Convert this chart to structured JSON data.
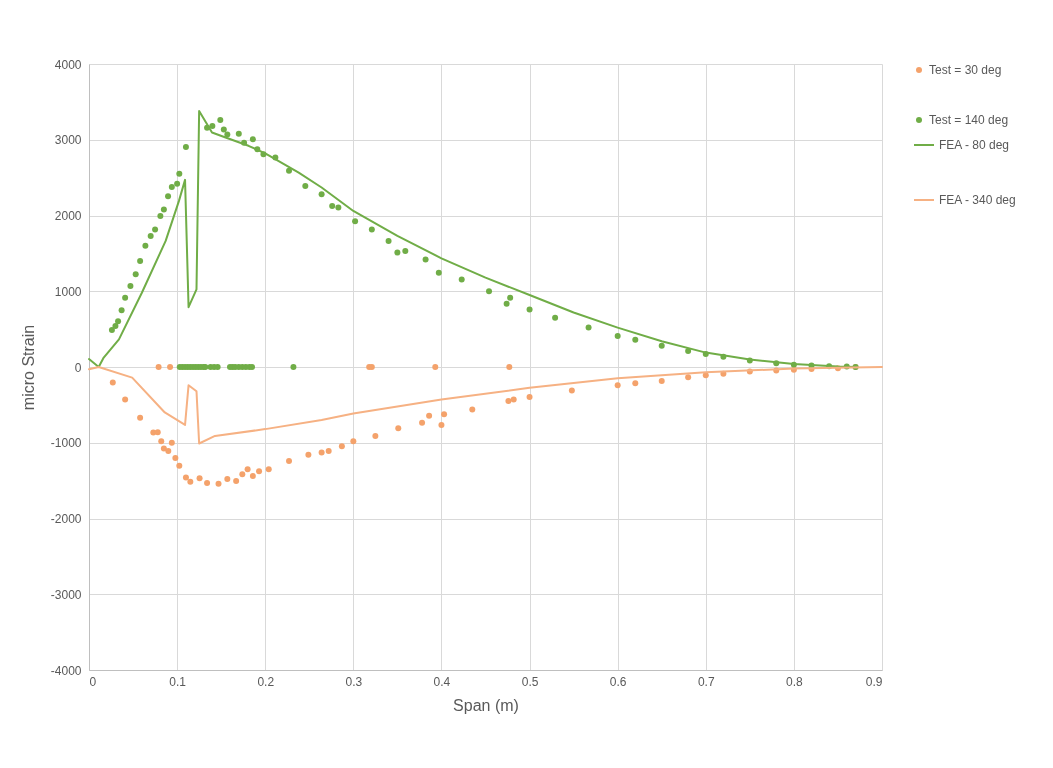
{
  "chart_data": {
    "type": "scatter",
    "xlabel": "Span (m)",
    "ylabel": "micro Strain",
    "xlim": [
      0,
      0.9
    ],
    "xticks": [
      0,
      0.1,
      0.2,
      0.3,
      0.4,
      0.5,
      0.6,
      0.7,
      0.8,
      0.9
    ],
    "ylim": [
      -4000,
      4000
    ],
    "yticks": [
      -4000,
      -3000,
      -2000,
      -1000,
      0,
      1000,
      2000,
      3000,
      4000
    ],
    "grid": true,
    "legend": "right",
    "series": [
      {
        "name": "Test = 30 deg",
        "marker": "circle",
        "color": "#f4a26b",
        "x": [
          0.027,
          0.041,
          0.058,
          0.073,
          0.078,
          0.082,
          0.085,
          0.09,
          0.094,
          0.098,
          0.1025,
          0.11,
          0.115,
          0.1255,
          0.134,
          0.147,
          0.157,
          0.167,
          0.174,
          0.18,
          0.186,
          0.193,
          0.204,
          0.227,
          0.249,
          0.264,
          0.272,
          0.287,
          0.3,
          0.325,
          0.351,
          0.378,
          0.386,
          0.4,
          0.403,
          0.435,
          0.476,
          0.482,
          0.5,
          0.548,
          0.6,
          0.62,
          0.65,
          0.68,
          0.7,
          0.72,
          0.75,
          0.78,
          0.8,
          0.82,
          0.85,
          0.87,
          0.079,
          0.092,
          0.318,
          0.321,
          0.393,
          0.477
        ],
        "values": [
          -205,
          -430,
          -670,
          -865,
          -860,
          -980,
          -1075,
          -1110,
          -1000,
          -1200,
          -1305,
          -1460,
          -1515,
          -1470,
          -1530,
          -1540,
          -1480,
          -1505,
          -1415,
          -1350,
          -1440,
          -1375,
          -1350,
          -1240,
          -1160,
          -1130,
          -1110,
          -1045,
          -980,
          -910,
          -810,
          -735,
          -645,
          -765,
          -625,
          -560,
          -450,
          -430,
          -395,
          -310,
          -240,
          -215,
          -185,
          -135,
          -110,
          -90,
          -60,
          -45,
          -35,
          -25,
          -15,
          0,
          0,
          0,
          0,
          0,
          0,
          0
        ]
      },
      {
        "name": "Test = 140 deg",
        "marker": "circle",
        "color": "#70ad47",
        "x": [
          0.026,
          0.03,
          0.033,
          0.037,
          0.041,
          0.047,
          0.053,
          0.058,
          0.064,
          0.07,
          0.075,
          0.081,
          0.085,
          0.0897,
          0.094,
          0.1,
          0.1025,
          0.11,
          0.134,
          0.14,
          0.149,
          0.153,
          0.157,
          0.17,
          0.176,
          0.186,
          0.191,
          0.198,
          0.2115,
          0.227,
          0.2455,
          0.264,
          0.276,
          0.283,
          0.302,
          0.321,
          0.34,
          0.35,
          0.359,
          0.382,
          0.397,
          0.423,
          0.454,
          0.474,
          0.478,
          0.5,
          0.529,
          0.567,
          0.6,
          0.62,
          0.65,
          0.68,
          0.7,
          0.72,
          0.75,
          0.78,
          0.8,
          0.82,
          0.84,
          0.86,
          0.87,
          0.103,
          0.106,
          0.109,
          0.112,
          0.115,
          0.118,
          0.121,
          0.124,
          0.127,
          0.13,
          0.132,
          0.138,
          0.142,
          0.146,
          0.16,
          0.163,
          0.166,
          0.17,
          0.174,
          0.178,
          0.182,
          0.185,
          0.232
        ],
        "values": [
          490,
          540,
          605,
          750,
          915,
          1070,
          1225,
          1400,
          1600,
          1730,
          1815,
          1995,
          2080,
          2255,
          2375,
          2420,
          2550,
          2905,
          3160,
          3180,
          3260,
          3135,
          3070,
          3080,
          2960,
          3005,
          2875,
          2810,
          2765,
          2590,
          2390,
          2280,
          2125,
          2105,
          1925,
          1815,
          1665,
          1510,
          1530,
          1420,
          1245,
          1155,
          1000,
          835,
          915,
          760,
          650,
          520,
          410,
          360,
          280,
          210,
          170,
          135,
          85,
          50,
          30,
          20,
          10,
          5,
          0,
          0,
          0,
          0,
          0,
          0,
          0,
          0,
          0,
          0,
          0,
          0,
          0,
          0,
          0,
          0,
          0,
          0,
          0,
          0,
          0,
          0,
          0,
          0
        ]
      },
      {
        "name": "FEA - 80 deg",
        "type": "line",
        "color": "#70ad47",
        "x": [
          0,
          0.011,
          0.0167,
          0.034,
          0.06,
          0.087,
          0.102,
          0.109,
          0.113,
          0.122,
          0.125,
          0.1396,
          0.155,
          0.181,
          0.2,
          0.238,
          0.264,
          0.3,
          0.35,
          0.4,
          0.45,
          0.5,
          0.55,
          0.6,
          0.65,
          0.7,
          0.75,
          0.8,
          0.85,
          0.87
        ],
        "values": [
          105,
          0,
          125,
          365,
          980,
          1665,
          2190,
          2470,
          790,
          1025,
          3380,
          3095,
          3030,
          2920,
          2820,
          2565,
          2370,
          2060,
          1730,
          1435,
          1180,
          950,
          720,
          520,
          340,
          190,
          100,
          40,
          5,
          0
        ]
      },
      {
        "name": "FEA - 340 deg",
        "type": "line",
        "color": "#f6b183",
        "x": [
          0,
          0.011,
          0.049,
          0.086,
          0.109,
          0.113,
          0.122,
          0.125,
          0.143,
          0.2,
          0.264,
          0.3,
          0.4,
          0.5,
          0.6,
          0.7,
          0.8,
          0.9
        ],
        "values": [
          -30,
          0,
          -140,
          -600,
          -765,
          -240,
          -320,
          -1010,
          -910,
          -820,
          -700,
          -615,
          -430,
          -275,
          -150,
          -70,
          -20,
          0
        ]
      }
    ]
  }
}
